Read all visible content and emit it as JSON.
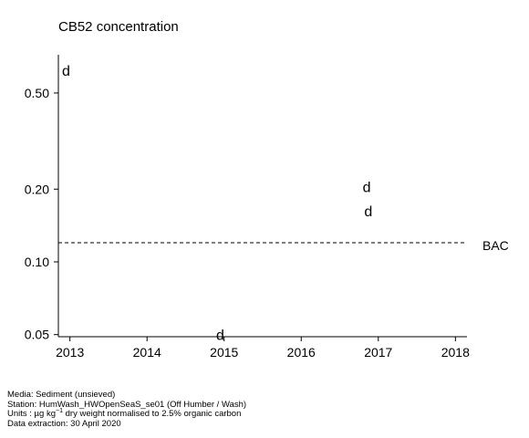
{
  "chart_data": {
    "type": "scatter",
    "title": "CB52 concentration",
    "y_scale": "log",
    "xlim": [
      2012.85,
      2018.15
    ],
    "ylim": [
      0.049,
      0.72
    ],
    "x_ticks": [
      2013,
      2014,
      2015,
      2016,
      2017,
      2018
    ],
    "x_tick_labels": [
      "2013",
      "2014",
      "2015",
      "2016",
      "2017",
      "2018"
    ],
    "y_ticks": [
      0.05,
      0.1,
      0.2,
      0.5
    ],
    "y_tick_labels": [
      "0.05",
      "0.10",
      "0.20",
      "0.50"
    ],
    "marker_label": "d",
    "points": [
      {
        "x": 2012.95,
        "y": 0.62
      },
      {
        "x": 2014.95,
        "y": 0.05
      },
      {
        "x": 2016.85,
        "y": 0.205
      },
      {
        "x": 2016.87,
        "y": 0.163
      }
    ],
    "reference_lines": [
      {
        "label": "BAC",
        "y": 0.12,
        "style": "dashed"
      }
    ],
    "grid": false
  },
  "footer": {
    "media": "Media: Sediment (unsieved)",
    "station": "Station: HumWash_HWOpenSeaS_se01 (Off Humber / Wash)",
    "units_prefix": "Units : µg kg",
    "units_exponent": "−1",
    "units_suffix": " dry weight normalised to 2.5% organic carbon",
    "extraction": "Data extraction: 30 April 2020"
  }
}
